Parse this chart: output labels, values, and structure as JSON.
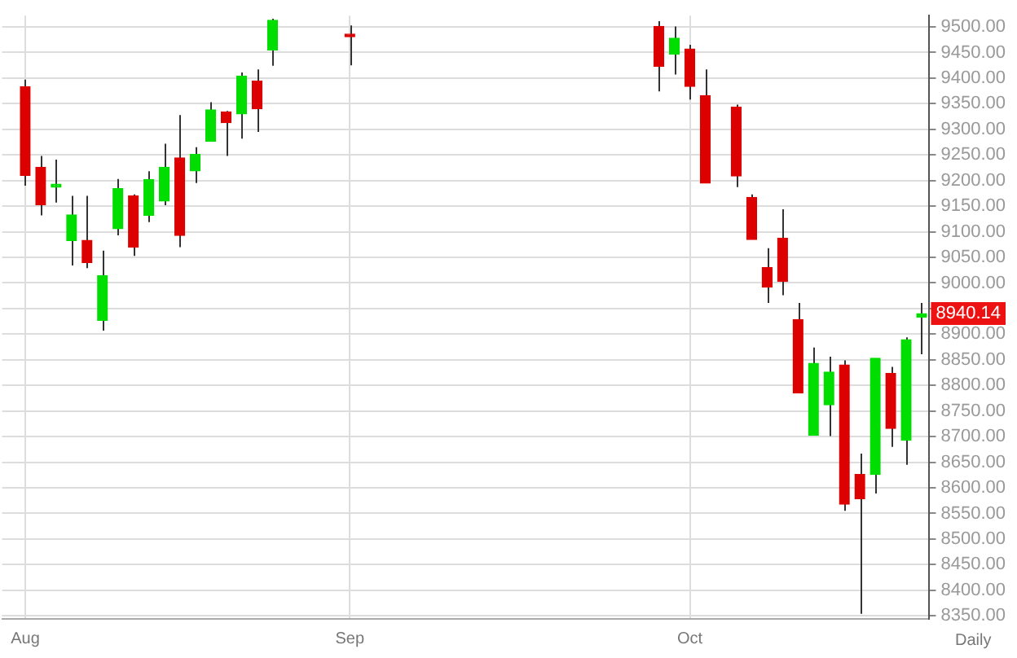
{
  "chart_data": {
    "type": "candlestick",
    "categories": [
      null,
      "Aug",
      null,
      null,
      null,
      null,
      null,
      null,
      null,
      null,
      null,
      null,
      null,
      null,
      null,
      null,
      null,
      null,
      null,
      null,
      null,
      null,
      "Sep",
      null,
      null,
      null,
      null,
      null,
      null,
      null,
      null,
      null,
      null,
      null,
      null,
      null,
      null,
      null,
      null,
      null,
      null,
      null,
      null,
      null,
      "Oct",
      null,
      null,
      null,
      null,
      null,
      null,
      null,
      null,
      null,
      null,
      null,
      null,
      null,
      null,
      null
    ],
    "ohlc": [
      null,
      [
        9383,
        9397,
        9190,
        9210
      ],
      [
        9226,
        9248,
        9132,
        9153
      ],
      [
        9187,
        9241,
        9157,
        9193
      ],
      [
        9083,
        9170,
        9034,
        9133
      ],
      [
        9083,
        9170,
        9029,
        9040
      ],
      [
        8927,
        9063,
        8907,
        9014
      ],
      [
        9106,
        9203,
        9093,
        9184
      ],
      [
        9170,
        9173,
        9053,
        9070
      ],
      [
        9132,
        9218,
        9119,
        9202
      ],
      [
        9160,
        9272,
        9152,
        9226
      ],
      [
        9244,
        9328,
        9070,
        9093
      ],
      [
        9219,
        9265,
        9195,
        9251
      ],
      [
        9277,
        9353,
        9277,
        9338
      ],
      [
        9334,
        9336,
        9248,
        9313
      ],
      [
        9330,
        9411,
        9282,
        9404
      ],
      [
        9394,
        9417,
        9295,
        9340
      ],
      [
        9455,
        9516,
        9424,
        9513
      ],
      null,
      null,
      null,
      null,
      [
        9486,
        9503,
        9425,
        9481
      ],
      null,
      null,
      null,
      null,
      null,
      null,
      null,
      null,
      null,
      null,
      null,
      null,
      null,
      null,
      null,
      null,
      null,
      null,
      null,
      [
        9501,
        9511,
        9374,
        9423
      ],
      [
        9447,
        9501,
        9407,
        9478
      ],
      [
        9457,
        9465,
        9358,
        9384
      ],
      [
        9366,
        9417,
        9195,
        9195
      ],
      null,
      [
        9343,
        9348,
        9187,
        9209
      ],
      [
        9167,
        9173,
        9085,
        9085
      ],
      [
        9030,
        9068,
        8961,
        8992
      ],
      [
        9087,
        9144,
        8976,
        9003
      ],
      [
        8928,
        8961,
        8785,
        8785
      ],
      [
        8703,
        8874,
        8703,
        8843
      ],
      [
        8762,
        8856,
        8701,
        8826
      ],
      [
        8840,
        8849,
        8555,
        8568
      ],
      [
        8626,
        8667,
        8354,
        8579
      ],
      [
        8626,
        8853,
        8589,
        8853
      ],
      [
        8823,
        8836,
        8680,
        8716
      ],
      [
        8693,
        8894,
        8645,
        8889
      ],
      [
        8933,
        8961,
        8861,
        8940.14
      ]
    ],
    "colors": [
      null,
      "#dd0000",
      "#dd0000",
      "#00dd00",
      "#00dd00",
      "#dd0000",
      "#00dd00",
      "#00dd00",
      "#dd0000",
      "#00dd00",
      "#00dd00",
      "#dd0000",
      "#00dd00",
      "#00dd00",
      "#dd0000",
      "#00dd00",
      "#dd0000",
      "#00dd00",
      null,
      null,
      null,
      null,
      "#dd0000",
      null,
      null,
      null,
      null,
      null,
      null,
      null,
      null,
      null,
      null,
      null,
      null,
      null,
      null,
      null,
      null,
      null,
      null,
      null,
      "#dd0000",
      "#00dd00",
      "#dd0000",
      "#dd0000",
      null,
      "#dd0000",
      "#dd0000",
      "#dd0000",
      "#dd0000",
      "#dd0000",
      "#00dd00",
      "#00dd00",
      "#dd0000",
      "#dd0000",
      "#00dd00",
      "#dd0000",
      "#00dd00",
      "#00dd00"
    ],
    "ylim": [
      8344,
      9522
    ],
    "yticks": [
      {
        "value": 8350,
        "label": "8350.00"
      },
      {
        "value": 8400,
        "label": "8400.00"
      },
      {
        "value": 8450,
        "label": "8450.00"
      },
      {
        "value": 8500,
        "label": "8500.00"
      },
      {
        "value": 8550,
        "label": "8550.00"
      },
      {
        "value": 8600,
        "label": "8600.00"
      },
      {
        "value": 8650,
        "label": "8650.00"
      },
      {
        "value": 8700,
        "label": "8700.00"
      },
      {
        "value": 8750,
        "label": "8750.00"
      },
      {
        "value": 8800,
        "label": "8800.00"
      },
      {
        "value": 8850,
        "label": "8850.00"
      },
      {
        "value": 8900,
        "label": "8900.00"
      },
      {
        "value": 8950,
        "label": null
      },
      {
        "value": 9000,
        "label": "9000.00"
      },
      {
        "value": 9050,
        "label": "9050.00"
      },
      {
        "value": 9100,
        "label": "9100.00"
      },
      {
        "value": 9150,
        "label": "9150.00"
      },
      {
        "value": 9200,
        "label": "9200.00"
      },
      {
        "value": 9250,
        "label": "9250.00"
      },
      {
        "value": 9300,
        "label": "9300.00"
      },
      {
        "value": 9350,
        "label": "9350.00"
      },
      {
        "value": 9400,
        "label": "9400.00"
      },
      {
        "value": 9450,
        "label": "9450.00"
      },
      {
        "value": 9500,
        "label": "9500.00"
      }
    ],
    "grid": true,
    "annotations": [
      "8940.14",
      "Daily"
    ]
  }
}
